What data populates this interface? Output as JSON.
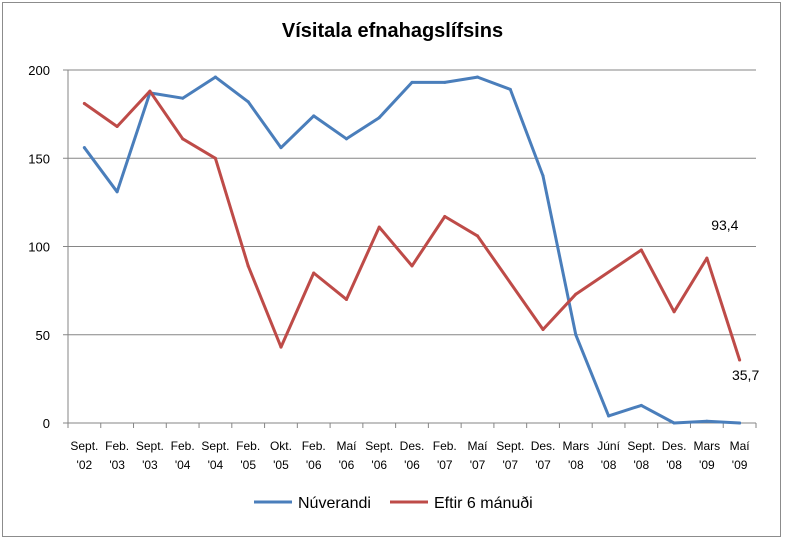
{
  "chart_data": {
    "type": "line",
    "title": "Vísitala efnahagslífsins",
    "xlabel": "",
    "ylabel": "",
    "ylim": [
      0,
      200
    ],
    "yticks": [
      0,
      50,
      100,
      150,
      200
    ],
    "grid": "horizontal",
    "legend_position": "bottom",
    "categories": [
      [
        "Sept.",
        "'02"
      ],
      [
        "Feb.",
        "'03"
      ],
      [
        "Sept.",
        "'03"
      ],
      [
        "Feb.",
        "'04"
      ],
      [
        "Sept.",
        "'04"
      ],
      [
        "Feb.",
        "'05"
      ],
      [
        "Okt.",
        "'05"
      ],
      [
        "Feb.",
        "'06"
      ],
      [
        "Maí",
        "'06"
      ],
      [
        "Sept.",
        "'06"
      ],
      [
        "Des.",
        "'06"
      ],
      [
        "Feb.",
        "'07"
      ],
      [
        "Maí",
        "'07"
      ],
      [
        "Sept.",
        "'07"
      ],
      [
        "Des.",
        "'07"
      ],
      [
        "Mars",
        "'08"
      ],
      [
        "Júní",
        "'08"
      ],
      [
        "Sept.",
        "'08"
      ],
      [
        "Des.",
        "'08"
      ],
      [
        "Mars",
        "'09"
      ],
      [
        "Maí",
        "'09"
      ]
    ],
    "series": [
      {
        "name": "Núverandi",
        "color": "#4a7ebb",
        "values": [
          156,
          131,
          187,
          184,
          196,
          182,
          156,
          174,
          161,
          173,
          193,
          193,
          196,
          189,
          140,
          50,
          4,
          10,
          0,
          1,
          0
        ]
      },
      {
        "name": "Eftir 6 mánuði",
        "color": "#be4b48",
        "values": [
          181,
          168,
          188,
          161,
          150,
          89,
          43,
          85,
          70,
          111,
          89,
          117,
          106,
          null,
          53,
          73,
          null,
          98,
          63,
          93.4,
          35.7
        ]
      }
    ],
    "data_labels": [
      {
        "series": 1,
        "index": 19,
        "text": "93,4"
      },
      {
        "series": 1,
        "index": 20,
        "text": "35,7"
      }
    ]
  }
}
